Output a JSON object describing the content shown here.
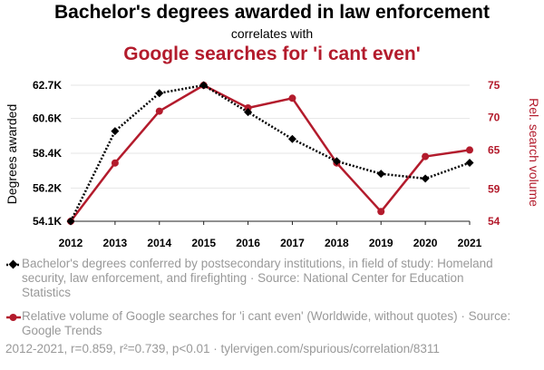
{
  "header": {
    "title": "Bachelor's degrees awarded in law enforcement",
    "subtitle": "correlates with",
    "title2": "Google searches for 'i cant even'"
  },
  "colors": {
    "series1": "#000000",
    "series2": "#b31b2c",
    "muted": "#999999"
  },
  "chart_data": {
    "type": "line",
    "title": "Bachelor's degrees awarded in law enforcement correlates with Google searches for 'i cant even'",
    "x": [
      2012,
      2013,
      2014,
      2015,
      2016,
      2017,
      2018,
      2019,
      2020,
      2021
    ],
    "xlabels": [
      "2012",
      "2013",
      "2014",
      "2015",
      "2016",
      "2017",
      "2018",
      "2019",
      "2020",
      "2021"
    ],
    "ylabel_left": "Degrees awarded",
    "ylabel_right": "Rel. search volume",
    "yticks_left": [
      54100,
      56200,
      58400,
      60600,
      62700
    ],
    "yticks_left_labels": [
      "54.1K",
      "56.2K",
      "58.4K",
      "60.6K",
      "62.7K"
    ],
    "ylim_left": [
      54100,
      62700
    ],
    "yticks_right": [
      54,
      59,
      65,
      70,
      75
    ],
    "yticks_right_labels": [
      "54",
      "59",
      "65",
      "70",
      "75"
    ],
    "ylim_right": [
      54,
      75
    ],
    "series": [
      {
        "name": "Bachelor's degrees conferred by postsecondary institutions, in field of study: Homeland security, law enforcement, and firefighting",
        "axis": "left",
        "style": "dotted",
        "marker": "diamond",
        "values": [
          54100,
          59800,
          62200,
          62700,
          61000,
          59300,
          57900,
          57100,
          56800,
          57800
        ]
      },
      {
        "name": "Relative volume of Google searches for 'i cant even' (Worldwide, without quotes)",
        "axis": "right",
        "style": "solid",
        "marker": "circle",
        "values": [
          54,
          63,
          71,
          75,
          71.5,
          73,
          63,
          55.5,
          64,
          65
        ]
      }
    ]
  },
  "legend": {
    "series1": "Bachelor's degrees conferred by postsecondary institutions, in field of study: Homeland security, law enforcement, and firefighting · Source: National Center for Education Statistics",
    "series2": "Relative volume of Google searches for 'i cant even' (Worldwide, without quotes) · Source: Google Trends"
  },
  "footer": "2012-2021, r=0.859, r²=0.739, p<0.01 · tylervigen.com/spurious/correlation/8311"
}
